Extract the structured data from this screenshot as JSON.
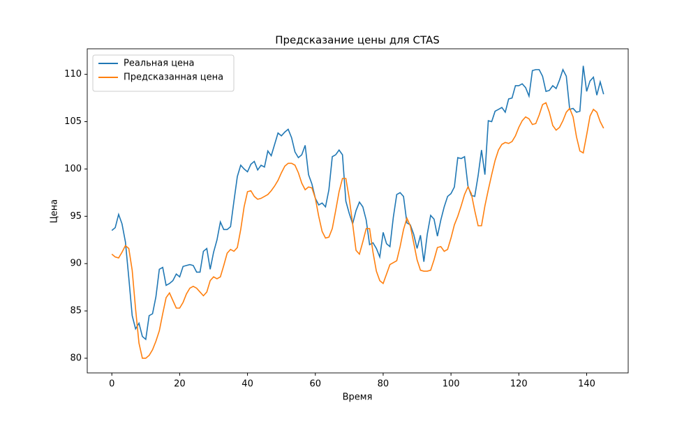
{
  "chart_data": {
    "type": "line",
    "title": "Предсказание цены для CTAS",
    "xlabel": "Время",
    "ylabel": "Цена",
    "x": [
      0,
      1,
      2,
      3,
      4,
      5,
      6,
      7,
      8,
      9,
      10,
      11,
      12,
      13,
      14,
      15,
      16,
      17,
      18,
      19,
      20,
      21,
      22,
      23,
      24,
      25,
      26,
      27,
      28,
      29,
      30,
      31,
      32,
      33,
      34,
      35,
      36,
      37,
      38,
      39,
      40,
      41,
      42,
      43,
      44,
      45,
      46,
      47,
      48,
      49,
      50,
      51,
      52,
      53,
      54,
      55,
      56,
      57,
      58,
      59,
      60,
      61,
      62,
      63,
      64,
      65,
      66,
      67,
      68,
      69,
      70,
      71,
      72,
      73,
      74,
      75,
      76,
      77,
      78,
      79,
      80,
      81,
      82,
      83,
      84,
      85,
      86,
      87,
      88,
      89,
      90,
      91,
      92,
      93,
      94,
      95,
      96,
      97,
      98,
      99,
      100,
      101,
      102,
      103,
      104,
      105,
      106,
      107,
      108,
      109,
      110,
      111,
      112,
      113,
      114,
      115,
      116,
      117,
      118,
      119,
      120,
      121,
      122,
      123,
      124,
      125,
      126,
      127,
      128,
      129,
      130,
      131,
      132,
      133,
      134,
      135,
      136,
      137,
      138,
      139,
      140,
      141,
      142,
      143,
      144,
      145
    ],
    "series": [
      {
        "name": "Реальная цена",
        "color": "#1f77b4",
        "values": [
          93.5,
          93.8,
          95.2,
          94.2,
          92.3,
          88.5,
          84.5,
          83.1,
          83.7,
          82.3,
          82.0,
          84.5,
          84.7,
          86.5,
          89.4,
          89.6,
          87.7,
          87.9,
          88.2,
          88.9,
          88.6,
          89.7,
          89.8,
          89.9,
          89.8,
          89.1,
          89.1,
          91.3,
          91.6,
          89.4,
          91.2,
          92.5,
          94.4,
          93.6,
          93.6,
          93.9,
          96.6,
          99.2,
          100.4,
          100.0,
          99.7,
          100.5,
          100.8,
          99.9,
          100.4,
          100.2,
          101.9,
          101.4,
          102.6,
          103.8,
          103.5,
          103.9,
          104.2,
          103.3,
          101.8,
          101.2,
          101.5,
          102.5,
          99.4,
          98.4,
          96.9,
          96.2,
          96.4,
          96.0,
          97.8,
          101.3,
          101.5,
          102.0,
          101.5,
          96.6,
          95.3,
          94.2,
          95.6,
          96.5,
          96.0,
          94.6,
          92.0,
          92.2,
          91.6,
          90.7,
          93.3,
          92.1,
          91.8,
          94.9,
          97.3,
          97.5,
          97.1,
          94.3,
          94.1,
          93.1,
          91.6,
          93.0,
          90.2,
          93.1,
          95.1,
          94.7,
          92.9,
          94.6,
          96.0,
          97.1,
          97.4,
          98.1,
          101.2,
          101.1,
          101.3,
          98.2,
          97.2,
          97.1,
          99.3,
          102.0,
          99.4,
          105.1,
          105.0,
          106.1,
          106.3,
          106.5,
          106.0,
          107.4,
          107.5,
          108.8,
          108.8,
          109.0,
          108.6,
          107.7,
          110.4,
          110.5,
          110.5,
          109.8,
          108.2,
          108.3,
          108.8,
          108.5,
          109.4,
          110.5,
          109.8,
          106.3,
          106.4,
          106.0,
          106.1,
          110.9,
          108.2,
          109.3,
          109.7,
          107.8,
          109.2,
          107.9
        ]
      },
      {
        "name": "Предсказанная цена",
        "color": "#ff7f0e",
        "values": [
          91.0,
          90.7,
          90.6,
          91.2,
          91.9,
          91.6,
          89.3,
          85.2,
          81.6,
          80.0,
          80.0,
          80.3,
          80.9,
          81.8,
          82.9,
          84.7,
          86.4,
          86.9,
          86.1,
          85.3,
          85.3,
          85.9,
          86.8,
          87.4,
          87.6,
          87.4,
          87.0,
          86.6,
          87.0,
          88.2,
          88.6,
          88.4,
          88.6,
          89.8,
          91.1,
          91.5,
          91.3,
          91.7,
          93.6,
          96.0,
          97.6,
          97.7,
          97.1,
          96.8,
          96.9,
          97.1,
          97.3,
          97.7,
          98.2,
          98.8,
          99.6,
          100.3,
          100.6,
          100.6,
          100.4,
          99.6,
          98.5,
          97.8,
          98.1,
          98.0,
          96.9,
          95.0,
          93.4,
          92.7,
          92.8,
          93.7,
          95.6,
          97.6,
          99.0,
          99.0,
          96.9,
          94.2,
          91.4,
          91.0,
          92.3,
          93.7,
          93.7,
          91.2,
          89.2,
          88.2,
          87.9,
          88.9,
          89.9,
          90.1,
          90.3,
          91.8,
          93.6,
          94.8,
          94.0,
          92.2,
          90.4,
          89.3,
          89.2,
          89.2,
          89.3,
          90.4,
          91.7,
          91.8,
          91.3,
          91.5,
          92.7,
          94.1,
          95.0,
          96.1,
          97.3,
          98.1,
          97.4,
          95.6,
          94.0,
          94.0,
          96.1,
          97.8,
          99.4,
          100.9,
          102.0,
          102.6,
          102.8,
          102.7,
          102.9,
          103.5,
          104.4,
          105.1,
          105.5,
          105.3,
          104.7,
          104.8,
          105.7,
          106.8,
          107.0,
          106.0,
          104.6,
          104.1,
          104.4,
          105.1,
          106.0,
          106.4,
          105.5,
          103.4,
          101.9,
          101.7,
          103.6,
          105.6,
          106.3,
          106.0,
          105.0,
          104.3
        ]
      }
    ],
    "xlim": [
      -7.25,
      152.25
    ],
    "xticks": [
      0,
      20,
      40,
      60,
      80,
      100,
      120,
      140
    ],
    "ylim": [
      78.45,
      112.7
    ],
    "yticks": [
      80,
      85,
      90,
      95,
      100,
      105,
      110
    ],
    "legend": "upper left"
  }
}
